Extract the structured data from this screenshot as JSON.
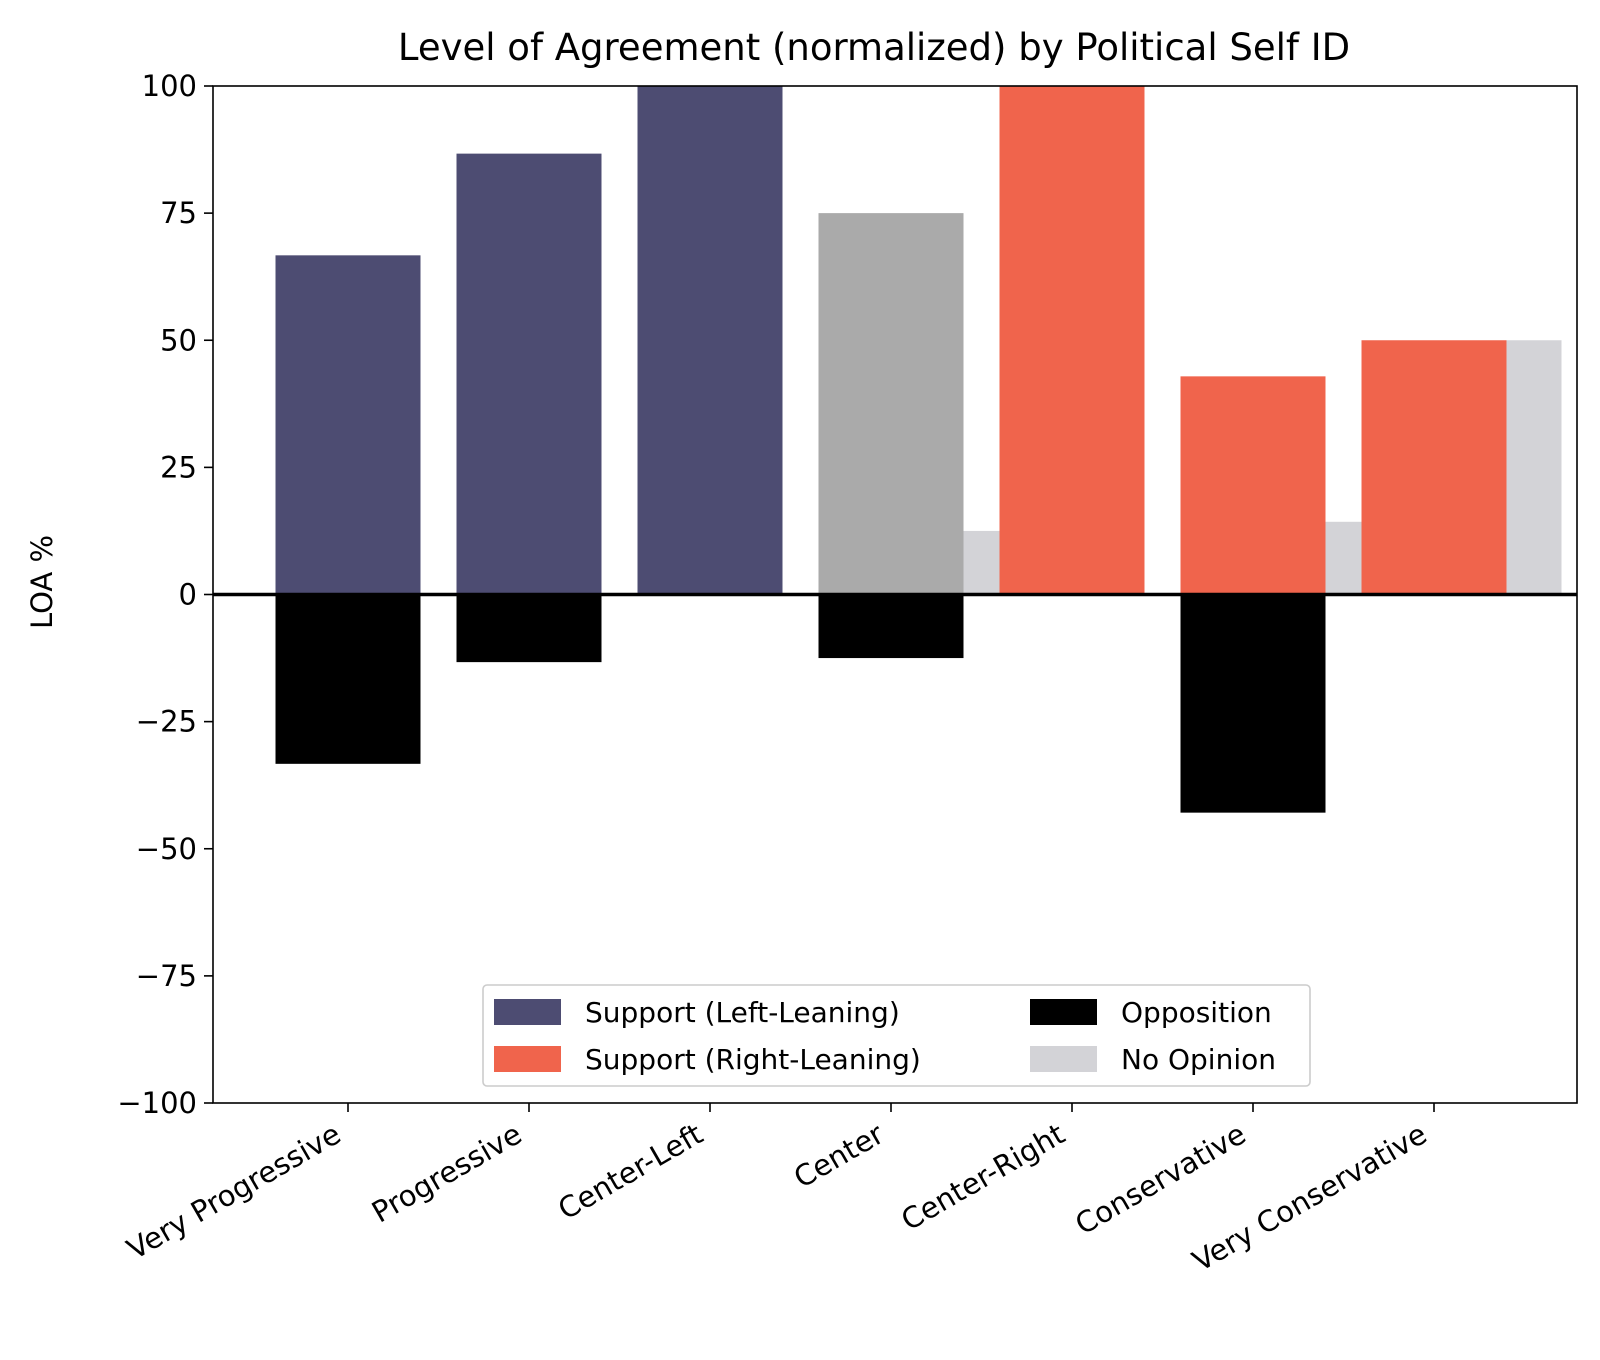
{
  "chart_data": {
    "type": "bar",
    "title": "Level of Agreement (normalized) by Political Self ID",
    "xlabel": "",
    "ylabel": "LOA %",
    "ylim": [
      -100,
      100
    ],
    "yticks": [
      100,
      75,
      50,
      25,
      0,
      -25,
      -50,
      -75,
      -100
    ],
    "ytick_labels": [
      "100",
      "75",
      "50",
      "25",
      "0",
      "−25",
      "−50",
      "−75",
      "−100"
    ],
    "categories": [
      "Very Progressive",
      "Progressive",
      "Center-Left",
      "Center",
      "Center-Right",
      "Conservative",
      "Very Conservative"
    ],
    "support": [
      66.7,
      86.7,
      100,
      75,
      100,
      42.9,
      50
    ],
    "support_colors": [
      "#4d4c72",
      "#4d4c72",
      "#4d4c72",
      "#aaaaaa",
      "#f0644c",
      "#f0644c",
      "#f0644c"
    ],
    "opposition": [
      -33.3,
      -13.3,
      0,
      -12.5,
      0,
      -42.9,
      0
    ],
    "no_opinion": [
      0,
      0,
      0,
      12.5,
      0,
      14.3,
      50
    ],
    "colors": {
      "left": "#4d4c72",
      "right": "#f0644c",
      "center": "#aaaaaa",
      "opposition": "#000000",
      "no_opinion": "#d3d3d7"
    },
    "legend": {
      "placement": "lower-center",
      "entries": [
        {
          "label": "Support (Left-Leaning)",
          "color": "#4d4c72"
        },
        {
          "label": "Opposition",
          "color": "#000000"
        },
        {
          "label": "Support (Right-Leaning)",
          "color": "#f0644c"
        },
        {
          "label": "No Opinion",
          "color": "#d3d3d7"
        }
      ]
    }
  }
}
